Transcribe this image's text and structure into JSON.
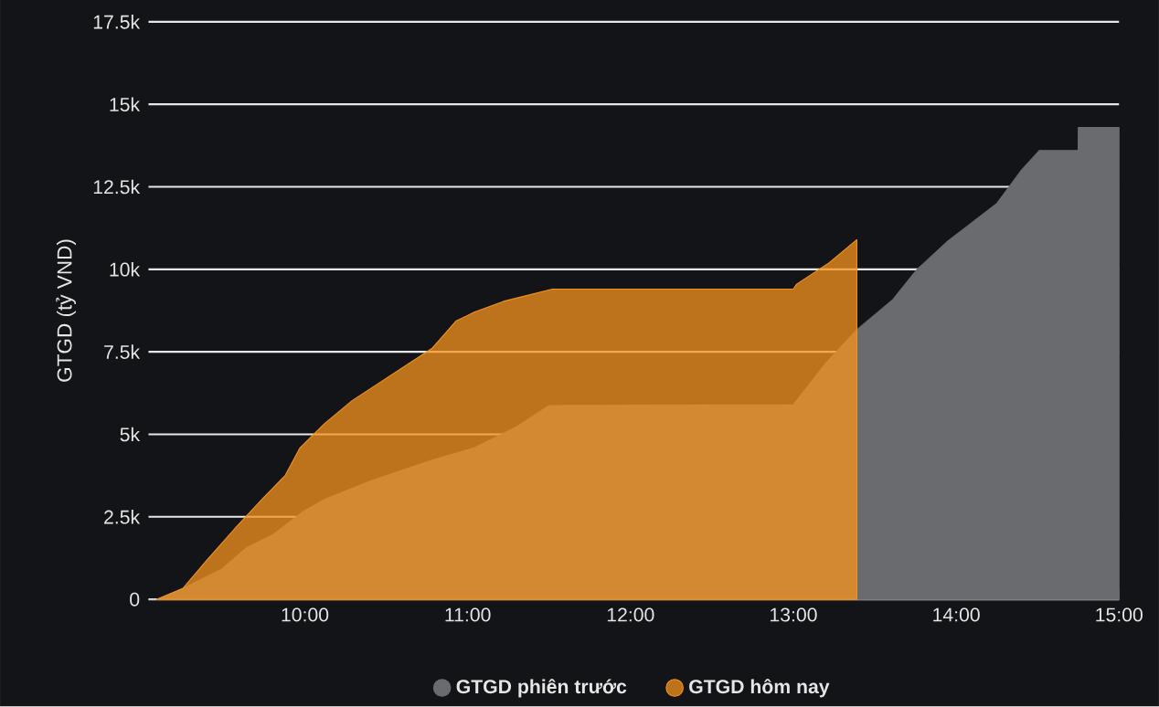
{
  "chart_data": {
    "type": "area",
    "ylabel": "GTGD (tỷ VND)",
    "xlim": [
      9.04,
      15.0
    ],
    "xticks": [
      {
        "value": 10,
        "label": "10:00"
      },
      {
        "value": 11,
        "label": "11:00"
      },
      {
        "value": 12,
        "label": "12:00"
      },
      {
        "value": 13,
        "label": "13:00"
      },
      {
        "value": 14,
        "label": "14:00"
      },
      {
        "value": 15,
        "label": "15:00"
      }
    ],
    "ylim": [
      0,
      17500
    ],
    "yticks": [
      0,
      {
        "value": 2500,
        "label": "2.5k"
      },
      {
        "value": 5000,
        "label": "5k"
      },
      {
        "value": 7500,
        "label": "7.5k"
      },
      {
        "value": 10000,
        "label": "10k"
      },
      {
        "value": 12500,
        "label": "12.5k"
      },
      {
        "value": 15000,
        "label": "15k"
      },
      {
        "value": 17500,
        "label": "17.5k"
      }
    ],
    "grid": "y",
    "legend": "bottom",
    "series": [
      {
        "name": "GTGD phiên trước",
        "color": "#6a6b6f",
        "x": [
          9.09,
          9.25,
          9.49,
          9.64,
          9.81,
          9.99,
          10.12,
          10.4,
          10.78,
          11.04,
          11.3,
          11.5,
          13.0,
          13.2,
          13.39,
          13.61,
          13.76,
          13.95,
          14.25,
          14.4,
          14.51,
          14.749,
          14.75,
          15.0
        ],
        "values": [
          0,
          330,
          920,
          1560,
          1980,
          2660,
          3030,
          3580,
          4220,
          4590,
          5230,
          5870,
          5900,
          7160,
          8170,
          9080,
          10000,
          10860,
          12000,
          13000,
          13600,
          13600,
          14300,
          14300
        ]
      },
      {
        "name": "GTGD hôm nay",
        "color": "#f7931e",
        "x": [
          9.09,
          9.25,
          9.4,
          9.58,
          9.75,
          9.88,
          9.97,
          10.12,
          10.29,
          10.5,
          10.78,
          10.93,
          11.04,
          11.22,
          11.52,
          13.0,
          13.02,
          13.22,
          13.39
        ],
        "values": [
          0,
          330,
          1200,
          2200,
          3100,
          3760,
          4590,
          5320,
          6020,
          6700,
          7600,
          8440,
          8700,
          9030,
          9400,
          9400,
          9550,
          10200,
          10900
        ]
      }
    ]
  }
}
